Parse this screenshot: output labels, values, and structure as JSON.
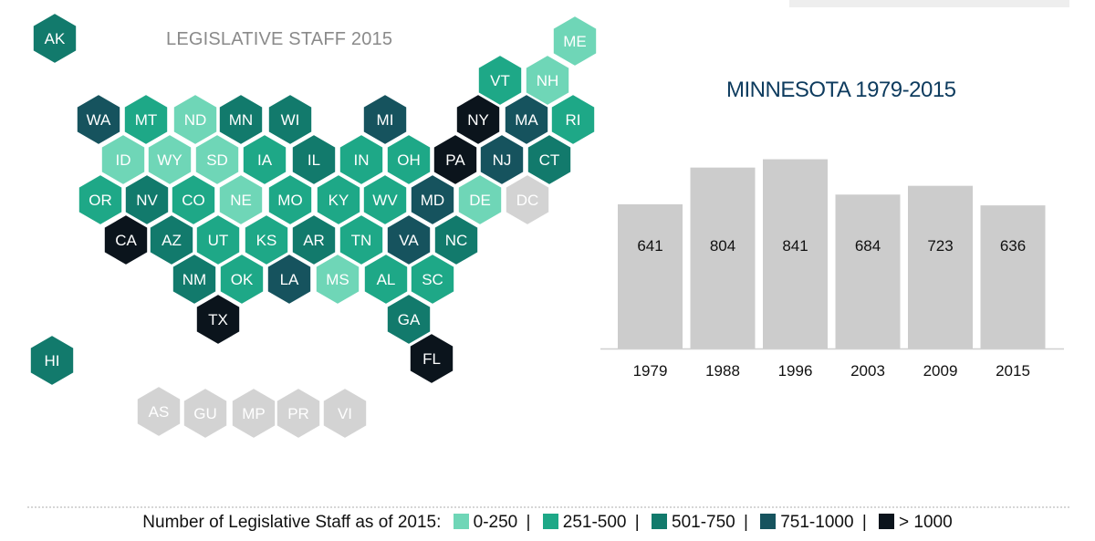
{
  "map": {
    "title": "LEGISLATIVE STAFF 2015",
    "colors": {
      "1": "#6fd6b7",
      "2": "#1ea887",
      "3": "#127a6c",
      "4": "#16535e",
      "5": "#0b141c",
      "na": "#d3d3d3"
    },
    "states": [
      {
        "code": "AK",
        "bin": 3
      },
      {
        "code": "ME",
        "bin": 1
      },
      {
        "code": "VT",
        "bin": 2
      },
      {
        "code": "NH",
        "bin": 1
      },
      {
        "code": "WA",
        "bin": 4
      },
      {
        "code": "MT",
        "bin": 2
      },
      {
        "code": "ND",
        "bin": 1
      },
      {
        "code": "MN",
        "bin": 3
      },
      {
        "code": "WI",
        "bin": 3
      },
      {
        "code": "MI",
        "bin": 4
      },
      {
        "code": "NY",
        "bin": 5
      },
      {
        "code": "MA",
        "bin": 4
      },
      {
        "code": "RI",
        "bin": 2
      },
      {
        "code": "ID",
        "bin": 1
      },
      {
        "code": "WY",
        "bin": 1
      },
      {
        "code": "SD",
        "bin": 1
      },
      {
        "code": "IA",
        "bin": 2
      },
      {
        "code": "IL",
        "bin": 3
      },
      {
        "code": "IN",
        "bin": 2
      },
      {
        "code": "OH",
        "bin": 2
      },
      {
        "code": "PA",
        "bin": 5
      },
      {
        "code": "NJ",
        "bin": 4
      },
      {
        "code": "CT",
        "bin": 3
      },
      {
        "code": "OR",
        "bin": 2
      },
      {
        "code": "NV",
        "bin": 3
      },
      {
        "code": "CO",
        "bin": 2
      },
      {
        "code": "NE",
        "bin": 1
      },
      {
        "code": "MO",
        "bin": 2
      },
      {
        "code": "KY",
        "bin": 2
      },
      {
        "code": "WV",
        "bin": 2
      },
      {
        "code": "MD",
        "bin": 4
      },
      {
        "code": "DE",
        "bin": 1
      },
      {
        "code": "DC",
        "bin": "na"
      },
      {
        "code": "CA",
        "bin": 5
      },
      {
        "code": "AZ",
        "bin": 3
      },
      {
        "code": "UT",
        "bin": 2
      },
      {
        "code": "KS",
        "bin": 2
      },
      {
        "code": "AR",
        "bin": 3
      },
      {
        "code": "TN",
        "bin": 2
      },
      {
        "code": "VA",
        "bin": 4
      },
      {
        "code": "NC",
        "bin": 3
      },
      {
        "code": "NM",
        "bin": 3
      },
      {
        "code": "OK",
        "bin": 2
      },
      {
        "code": "LA",
        "bin": 4
      },
      {
        "code": "MS",
        "bin": 1
      },
      {
        "code": "AL",
        "bin": 2
      },
      {
        "code": "SC",
        "bin": 2
      },
      {
        "code": "TX",
        "bin": 5
      },
      {
        "code": "GA",
        "bin": 3
      },
      {
        "code": "HI",
        "bin": 3
      },
      {
        "code": "FL",
        "bin": 5
      },
      {
        "code": "AS",
        "bin": "na"
      },
      {
        "code": "GU",
        "bin": "na"
      },
      {
        "code": "MP",
        "bin": "na"
      },
      {
        "code": "PR",
        "bin": "na"
      },
      {
        "code": "VI",
        "bin": "na"
      }
    ]
  },
  "chart_data": {
    "type": "bar",
    "title": "MINNESOTA 1979-2015",
    "categories": [
      "1979",
      "1988",
      "1996",
      "2003",
      "2009",
      "2015"
    ],
    "values": [
      641,
      804,
      841,
      684,
      723,
      636
    ],
    "ylim": [
      0,
      900
    ],
    "bar_color": "#cccccc",
    "xlabel": "",
    "ylabel": "",
    "grid": false
  },
  "legend": {
    "label": "Number of Legislative Staff as of 2015:",
    "separator": "|",
    "items": [
      {
        "label": "0-250",
        "color": "#6fd6b7"
      },
      {
        "label": "251-500",
        "color": "#1ea887"
      },
      {
        "label": "501-750",
        "color": "#127a6c"
      },
      {
        "label": "751-1000",
        "color": "#16535e"
      },
      {
        "label": "> 1000",
        "color": "#0b141c"
      }
    ]
  }
}
